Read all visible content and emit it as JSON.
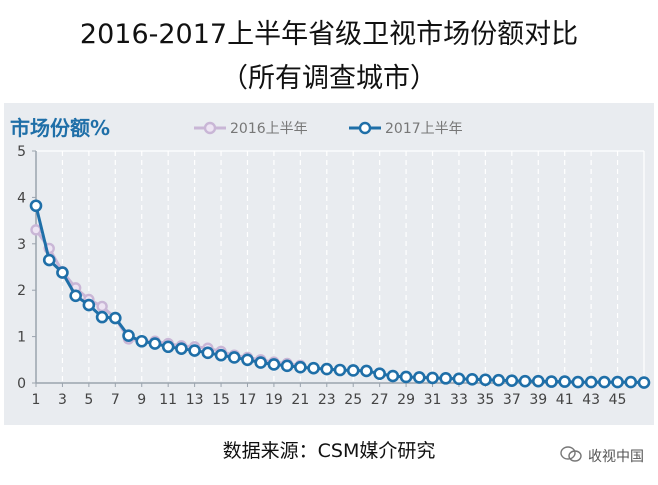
{
  "title": {
    "line1": "2016-2017上半年省级卫视市场份额对比",
    "line2": "（所有调查城市）"
  },
  "footer": {
    "source": "数据来源：CSM媒介研究",
    "watermark": "收视中国"
  },
  "colors": {
    "background_panel": "#e9ecf0",
    "series_2017": "#1f6fa8",
    "series_2016": "#c9b6d6",
    "title_accent": "#1f6fa8"
  },
  "chart_data": {
    "type": "line",
    "title": "市场份额%",
    "xlabel": "",
    "ylabel": "市场份额%",
    "ylim": [
      0,
      5
    ],
    "yticks": [
      0,
      1,
      2,
      3,
      4,
      5
    ],
    "xticks": [
      1,
      3,
      5,
      7,
      9,
      11,
      13,
      15,
      17,
      19,
      21,
      23,
      25,
      27,
      29,
      31,
      33,
      35,
      37,
      39,
      41,
      43,
      45
    ],
    "grid": true,
    "legend_position": "top",
    "series": [
      {
        "name": "2016上半年",
        "color": "#c9b6d6",
        "x": [
          1,
          2,
          3,
          4,
          5,
          6,
          7,
          8,
          9,
          10,
          11,
          12,
          13,
          14,
          15,
          16,
          17,
          18,
          19,
          20,
          21
        ],
        "values": [
          3.3,
          2.9,
          2.4,
          2.05,
          1.8,
          1.65,
          1.4,
          0.95,
          0.9,
          0.9,
          0.85,
          0.8,
          0.78,
          0.75,
          0.68,
          0.6,
          0.55,
          0.5,
          0.45,
          0.42,
          0.38
        ]
      },
      {
        "name": "2017上半年",
        "color": "#1f6fa8",
        "x": [
          1,
          2,
          3,
          4,
          5,
          6,
          7,
          8,
          9,
          10,
          11,
          12,
          13,
          14,
          15,
          16,
          17,
          18,
          19,
          20,
          21,
          22,
          23,
          24,
          25,
          26,
          27,
          28,
          29,
          30,
          31,
          32,
          33,
          34,
          35,
          36,
          37,
          38,
          39,
          40,
          41,
          42,
          43,
          44,
          45,
          46,
          47
        ],
        "values": [
          3.82,
          2.65,
          2.38,
          1.88,
          1.68,
          1.42,
          1.4,
          1.02,
          0.9,
          0.85,
          0.78,
          0.74,
          0.7,
          0.65,
          0.6,
          0.55,
          0.5,
          0.44,
          0.4,
          0.37,
          0.34,
          0.32,
          0.3,
          0.28,
          0.27,
          0.26,
          0.2,
          0.15,
          0.13,
          0.12,
          0.11,
          0.1,
          0.09,
          0.08,
          0.07,
          0.06,
          0.05,
          0.04,
          0.04,
          0.03,
          0.03,
          0.02,
          0.02,
          0.02,
          0.02,
          0.02,
          0.01
        ]
      }
    ]
  }
}
